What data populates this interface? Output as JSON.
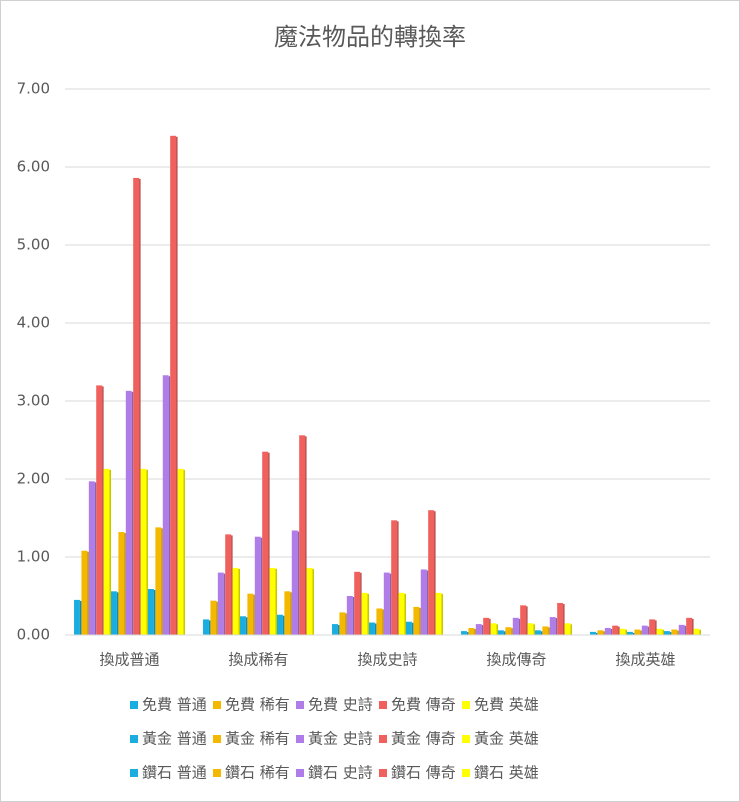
{
  "chart_data": {
    "type": "bar",
    "title": "魔法物品的轉換率",
    "categories": [
      "換成普通",
      "換成稀有",
      "換成史詩",
      "換成傳奇",
      "換成英雄"
    ],
    "series": [
      {
        "name": "免費 普通",
        "color": "#1aaee0",
        "values": [
          0.45,
          0.2,
          0.14,
          0.05,
          0.04
        ]
      },
      {
        "name": "免費 稀有",
        "color": "#f5b800",
        "values": [
          1.08,
          0.44,
          0.29,
          0.09,
          0.06
        ]
      },
      {
        "name": "免費 史詩",
        "color": "#b07ce8",
        "values": [
          1.97,
          0.8,
          0.5,
          0.14,
          0.09
        ]
      },
      {
        "name": "免費 傳奇",
        "color": "#f0605d",
        "values": [
          3.2,
          1.29,
          0.81,
          0.22,
          0.12
        ]
      },
      {
        "name": "免費 英雄",
        "color": "#ffff00",
        "values": [
          2.13,
          0.86,
          0.54,
          0.15,
          0.08
        ]
      },
      {
        "name": "黃金 普通",
        "color": "#1aaee0",
        "values": [
          0.56,
          0.24,
          0.16,
          0.06,
          0.04
        ]
      },
      {
        "name": "黃金 稀有",
        "color": "#f5b800",
        "values": [
          1.32,
          0.53,
          0.34,
          0.1,
          0.07
        ]
      },
      {
        "name": "黃金 史詩",
        "color": "#b07ce8",
        "values": [
          3.13,
          1.26,
          0.8,
          0.22,
          0.12
        ]
      },
      {
        "name": "黃金 傳奇",
        "color": "#f0605d",
        "values": [
          5.86,
          2.35,
          1.47,
          0.38,
          0.2
        ]
      },
      {
        "name": "黃金 英雄",
        "color": "#ffff00",
        "values": [
          2.13,
          0.86,
          0.54,
          0.15,
          0.08
        ]
      },
      {
        "name": "鑽石 普通",
        "color": "#1aaee0",
        "values": [
          0.59,
          0.26,
          0.17,
          0.06,
          0.05
        ]
      },
      {
        "name": "鑽石 稀有",
        "color": "#f5b800",
        "values": [
          1.38,
          0.56,
          0.36,
          0.11,
          0.07
        ]
      },
      {
        "name": "鑽石 史詩",
        "color": "#b07ce8",
        "values": [
          3.33,
          1.34,
          0.84,
          0.23,
          0.13
        ]
      },
      {
        "name": "鑽石 傳奇",
        "color": "#f0605d",
        "values": [
          6.4,
          2.56,
          1.6,
          0.41,
          0.22
        ]
      },
      {
        "name": "鑽石 英雄",
        "color": "#ffff00",
        "values": [
          2.13,
          0.86,
          0.54,
          0.15,
          0.08
        ]
      }
    ],
    "ylim": [
      0,
      7
    ],
    "yticks": [
      {
        "value": 0,
        "label": "0.00"
      },
      {
        "value": 1,
        "label": "1.00"
      },
      {
        "value": 2,
        "label": "2.00"
      },
      {
        "value": 3,
        "label": "3.00"
      },
      {
        "value": 4,
        "label": "4.00"
      },
      {
        "value": 5,
        "label": "5.00"
      },
      {
        "value": 6,
        "label": "6.00"
      },
      {
        "value": 7,
        "label": "7.00"
      }
    ],
    "grid": true,
    "legend": "bottom"
  }
}
